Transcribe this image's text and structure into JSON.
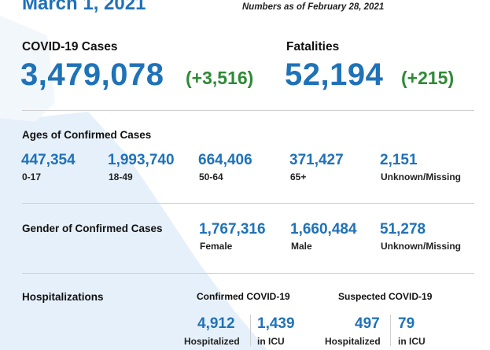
{
  "header": {
    "date": "March 1, 2021",
    "as_of": "Numbers as of February 28, 2021"
  },
  "cases": {
    "label": "COVID-19 Cases",
    "total": "3,479,078",
    "delta": "(+3,516)"
  },
  "fatalities": {
    "label": "Fatalities",
    "total": "52,194",
    "delta": "(+215)"
  },
  "ages": {
    "title": "Ages of Confirmed Cases",
    "groups": [
      {
        "value": "447,354",
        "label": "0-17"
      },
      {
        "value": "1,993,740",
        "label": "18-49"
      },
      {
        "value": "664,406",
        "label": "50-64"
      },
      {
        "value": "371,427",
        "label": "65+"
      },
      {
        "value": "2,151",
        "label": "Unknown/Missing"
      }
    ]
  },
  "gender": {
    "title": "Gender of Confirmed Cases",
    "groups": [
      {
        "value": "1,767,316",
        "label": "Female"
      },
      {
        "value": "1,660,484",
        "label": "Male"
      },
      {
        "value": "51,278",
        "label": "Unknown/Missing"
      }
    ]
  },
  "hospitalizations": {
    "title": "Hospitalizations",
    "confirmed": {
      "label": "Confirmed COVID-19",
      "hospitalized": "4,912",
      "hospitalized_label": "Hospitalized",
      "icu": "1,439",
      "icu_label": "in ICU"
    },
    "suspected": {
      "label": "Suspected COVID-19",
      "hospitalized": "497",
      "hospitalized_label": "Hospitalized",
      "icu": "79",
      "icu_label": "in ICU"
    }
  },
  "colors": {
    "primary_blue": "#1f72b8",
    "delta_green": "#2e8a36",
    "map_tint": "#e6f0fa"
  }
}
